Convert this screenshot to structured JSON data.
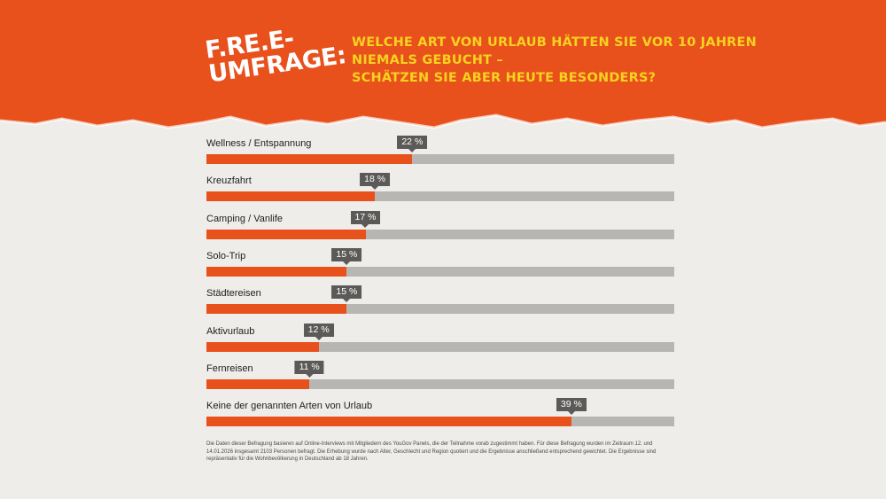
{
  "header": {
    "logo_line1": "F.RE.E-",
    "logo_line2": "UMFRAGE:",
    "question_line1": "WELCHE ART VON URLAUB HÄTTEN SIE VOR 10 JAHREN",
    "question_line2": "NIEMALS GEBUCHT –",
    "question_line3": "SCHÄTZEN SIE ABER HEUTE BESONDERS?"
  },
  "chart_data": {
    "type": "bar",
    "orientation": "horizontal",
    "categories": [
      "Wellness / Entspannung",
      "Kreuzfahrt",
      "Camping / Vanlife",
      "Solo-Trip",
      "Städtereisen",
      "Aktivurlaub",
      "Fernreisen",
      "Keine der genannten Arten von Urlaub"
    ],
    "values": [
      22,
      18,
      17,
      15,
      15,
      12,
      11,
      39
    ],
    "value_labels": [
      "22 %",
      "18 %",
      "17 %",
      "15 %",
      "15 %",
      "12 %",
      "11 %",
      "39 %"
    ],
    "xlim": [
      0,
      50
    ],
    "unit": "%",
    "colors": {
      "bar": "#e8501c",
      "track": "#b8b6b3",
      "tag": "#5c5a58"
    }
  },
  "footnote": "Die Daten dieser Befragung basieren auf Online-Interviews mit Mitgliedern des YouGov Panels, die der Teilnahme vorab zugestimmt haben. Für diese Befragung wurden im Zeitraum 12. und 14.01.2026 insgesamt 2103 Personen befragt. Die Erhebung wurde nach Alter, Geschlecht und Region quotiert und die Ergebnisse anschließend entsprechend gewichtet. Die Ergebnisse sind repräsentativ für die Wohnbevölkerung in Deutschland ab 18 Jahren."
}
